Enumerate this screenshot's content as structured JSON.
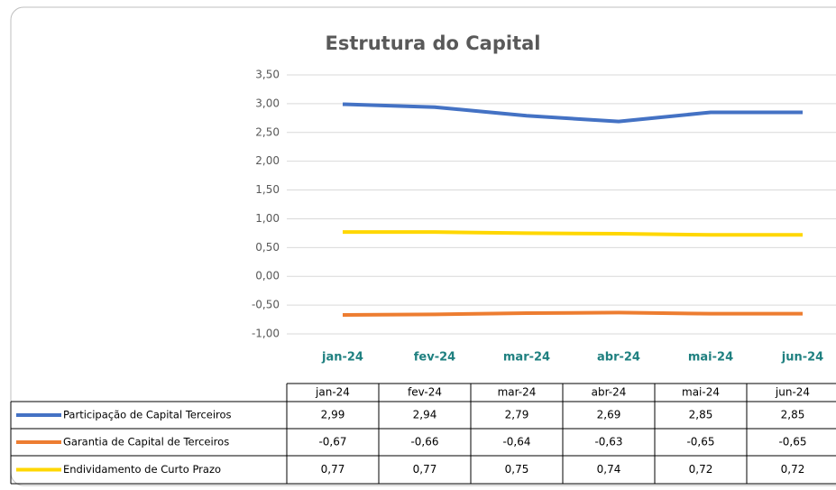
{
  "chart_data": {
    "type": "line",
    "title": "Estrutura do Capital",
    "categories": [
      "jan-24",
      "fev-24",
      "mar-24",
      "abr-24",
      "mai-24",
      "jun-24"
    ],
    "series": [
      {
        "name": "Participação de Capital Terceiros",
        "color": "#4472c4",
        "values": [
          2.99,
          2.94,
          2.79,
          2.69,
          2.85,
          2.85
        ],
        "value_labels": [
          "2,99",
          "2,94",
          "2,79",
          "2,69",
          "2,85",
          "2,85"
        ]
      },
      {
        "name": "Garantia de Capital de Terceiros",
        "color": "#ed7d31",
        "values": [
          -0.67,
          -0.66,
          -0.64,
          -0.63,
          -0.65,
          -0.65
        ],
        "value_labels": [
          "-0,67",
          "-0,66",
          "-0,64",
          "-0,63",
          "-0,65",
          "-0,65"
        ]
      },
      {
        "name": "Endividamento de Curto Prazo",
        "color": "#ffd700",
        "values": [
          0.77,
          0.77,
          0.75,
          0.74,
          0.72,
          0.72
        ],
        "value_labels": [
          "0,77",
          "0,77",
          "0,75",
          "0,74",
          "0,72",
          "0,72"
        ]
      }
    ],
    "ylim": [
      -1,
      3.5
    ],
    "yticks": [
      {
        "value": 3.5,
        "label": "3,50"
      },
      {
        "value": 3,
        "label": "3,00"
      },
      {
        "value": 2.5,
        "label": "2,50"
      },
      {
        "value": 2,
        "label": "2,00"
      },
      {
        "value": 1.5,
        "label": "1,50"
      },
      {
        "value": 1,
        "label": "1,00"
      },
      {
        "value": 0.5,
        "label": "0,50"
      },
      {
        "value": 0,
        "label": "0,00"
      },
      {
        "value": -0.5,
        "label": "-0,50"
      },
      {
        "value": -1,
        "label": "-1,00"
      }
    ],
    "grid": true
  }
}
